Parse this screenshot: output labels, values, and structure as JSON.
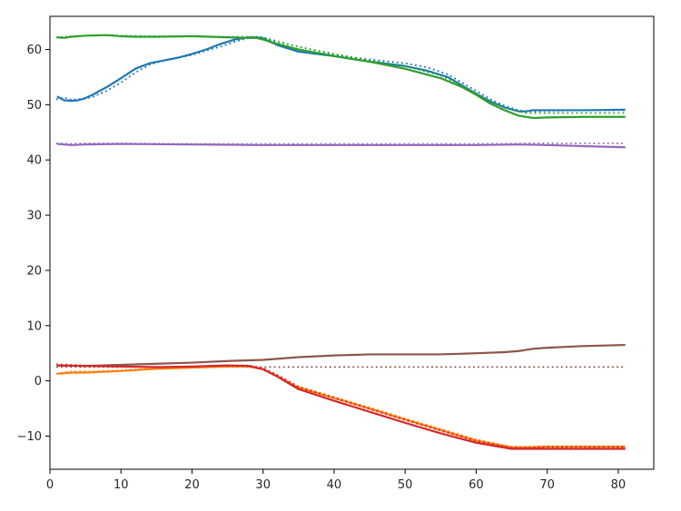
{
  "chart_data": {
    "type": "line",
    "title": "",
    "xlabel": "",
    "ylabel": "",
    "xlim": [
      0,
      85
    ],
    "ylim": [
      -16,
      66
    ],
    "xticks": [
      0,
      10,
      20,
      30,
      40,
      50,
      60,
      70,
      80
    ],
    "yticks": [
      -10,
      0,
      10,
      20,
      30,
      40,
      50,
      60
    ],
    "xtick_labels": [
      "0",
      "10",
      "20",
      "30",
      "40",
      "50",
      "60",
      "70",
      "80"
    ],
    "ytick_labels": [
      "−10",
      "0",
      "10",
      "20",
      "30",
      "40",
      "50",
      "60"
    ],
    "grid": false,
    "legend": false,
    "series": [
      {
        "color": "#1f77b4",
        "style": "dotted",
        "x": [
          1,
          2,
          3,
          4,
          5,
          6,
          8,
          10,
          12,
          14,
          16,
          18,
          20,
          22,
          24,
          26,
          28,
          29,
          30,
          32,
          35,
          40,
          45,
          50,
          53,
          56,
          58,
          60,
          62,
          64,
          66,
          67,
          68,
          70,
          75,
          81
        ],
        "y": [
          51,
          51.3,
          50.9,
          51,
          51.1,
          51.4,
          52.5,
          54,
          55.8,
          57.2,
          58,
          58.5,
          59,
          59.8,
          60.5,
          61.4,
          62.1,
          62.3,
          62.2,
          61.2,
          60,
          59,
          58.2,
          57.5,
          56.8,
          55.5,
          54,
          52.5,
          51,
          49.8,
          49,
          48.8,
          48.8,
          48.9,
          49,
          49
        ]
      },
      {
        "color": "#1f77b4",
        "style": "solid",
        "x": [
          1,
          2,
          3,
          4,
          5,
          6,
          8,
          10,
          12,
          14,
          16,
          18,
          20,
          22,
          24,
          26,
          28,
          29,
          30,
          32,
          35,
          40,
          45,
          50,
          53,
          56,
          58,
          60,
          62,
          64,
          66,
          67,
          68,
          70,
          75,
          81
        ],
        "y": [
          51.5,
          50.8,
          50.7,
          50.8,
          51.2,
          51.8,
          53.2,
          54.8,
          56.5,
          57.5,
          58,
          58.5,
          59.2,
          60,
          61,
          61.8,
          62.2,
          62.2,
          62,
          60.8,
          59.6,
          58.8,
          57.8,
          57,
          56.2,
          55,
          53.5,
          52,
          50.6,
          49.5,
          48.8,
          48.8,
          49,
          49,
          49,
          49.1
        ]
      },
      {
        "color": "#2ca02c",
        "style": "dotted",
        "x": [
          1,
          3,
          5,
          8,
          10,
          15,
          20,
          25,
          29,
          30,
          32,
          35,
          40,
          45,
          50,
          55,
          58,
          60,
          63,
          66,
          67,
          68,
          70,
          75,
          81
        ],
        "y": [
          62.2,
          62.4,
          62.5,
          62.6,
          62.5,
          62.4,
          62.4,
          62.3,
          62.3,
          62.2,
          61.5,
          60.5,
          59.2,
          58,
          57,
          55.3,
          53.5,
          52,
          50,
          48.8,
          48.5,
          48.5,
          48.5,
          48.5,
          48.5
        ]
      },
      {
        "color": "#2ca02c",
        "style": "solid",
        "x": [
          1,
          2,
          3,
          5,
          8,
          10,
          12,
          15,
          20,
          25,
          28,
          29,
          30,
          32,
          35,
          40,
          45,
          50,
          55,
          58,
          60,
          62,
          64,
          66,
          67,
          68,
          70,
          75,
          81
        ],
        "y": [
          62.2,
          62.1,
          62.3,
          62.5,
          62.6,
          62.4,
          62.3,
          62.3,
          62.4,
          62.2,
          62.1,
          62.1,
          61.8,
          61,
          60,
          58.8,
          57.8,
          56.5,
          54.8,
          53.2,
          51.8,
          50.2,
          49,
          48,
          47.8,
          47.6,
          47.7,
          47.8,
          47.8
        ]
      },
      {
        "color": "#9467bd",
        "style": "dotted",
        "x": [
          1,
          3,
          5,
          10,
          20,
          30,
          40,
          50,
          60,
          70,
          75,
          81
        ],
        "y": [
          43,
          42.9,
          43,
          43,
          42.9,
          42.9,
          42.9,
          42.9,
          42.9,
          43,
          43,
          43
        ]
      },
      {
        "color": "#9467bd",
        "style": "solid",
        "x": [
          1,
          3,
          5,
          10,
          20,
          30,
          40,
          50,
          60,
          66,
          70,
          75,
          81
        ],
        "y": [
          42.9,
          42.7,
          42.8,
          42.9,
          42.8,
          42.7,
          42.7,
          42.7,
          42.7,
          42.8,
          42.7,
          42.5,
          42.3
        ]
      },
      {
        "color": "#8c564b",
        "style": "dotted",
        "x": [
          1,
          10,
          20,
          30,
          40,
          50,
          60,
          70,
          81
        ],
        "y": [
          2.5,
          2.5,
          2.5,
          2.5,
          2.5,
          2.5,
          2.5,
          2.5,
          2.5
        ]
      },
      {
        "color": "#8c564b",
        "style": "solid",
        "x": [
          1,
          5,
          10,
          15,
          20,
          25,
          30,
          35,
          40,
          45,
          50,
          55,
          60,
          64,
          66,
          68,
          70,
          75,
          81
        ],
        "y": [
          2.8,
          2.7,
          2.9,
          3.1,
          3.3,
          3.6,
          3.8,
          4.3,
          4.6,
          4.8,
          4.8,
          4.8,
          5,
          5.2,
          5.4,
          5.8,
          6,
          6.3,
          6.5
        ]
      },
      {
        "color": "#ff7f0e",
        "style": "dotted",
        "x": [
          1,
          3,
          5,
          10,
          15,
          20,
          25,
          28,
          30,
          32,
          35,
          40,
          45,
          50,
          55,
          60,
          65,
          67,
          68,
          70,
          75,
          81
        ],
        "y": [
          1.3,
          1.7,
          1.7,
          1.9,
          2.3,
          2.5,
          2.7,
          2.7,
          2.2,
          1,
          -1,
          -2.9,
          -4.8,
          -6.8,
          -8.7,
          -10.6,
          -12,
          -12,
          -11.9,
          -11.8,
          -11.8,
          -11.8
        ]
      },
      {
        "color": "#ff7f0e",
        "style": "solid",
        "x": [
          1,
          3,
          5,
          10,
          15,
          20,
          25,
          28,
          30,
          32,
          35,
          40,
          45,
          50,
          55,
          60,
          65,
          67,
          68,
          70,
          75,
          81
        ],
        "y": [
          1.3,
          1.5,
          1.5,
          1.8,
          2.2,
          2.4,
          2.6,
          2.6,
          2.1,
          0.8,
          -1.2,
          -3.1,
          -5,
          -7,
          -8.9,
          -10.8,
          -12,
          -12,
          -12,
          -11.9,
          -11.9,
          -11.9
        ]
      },
      {
        "color": "#d62728",
        "style": "dotted",
        "x": [
          1,
          5,
          10,
          15,
          20,
          25,
          28,
          30,
          32,
          35,
          40,
          45,
          50,
          55,
          60,
          65,
          67,
          70,
          75,
          81
        ],
        "y": [
          3,
          2.8,
          2.6,
          2.5,
          2.6,
          2.8,
          2.8,
          2.3,
          1.1,
          -1.1,
          -3.1,
          -5.1,
          -7.1,
          -9,
          -10.9,
          -12.1,
          -12.1,
          -12,
          -12,
          -12
        ]
      },
      {
        "color": "#d62728",
        "style": "solid",
        "x": [
          1,
          5,
          10,
          15,
          20,
          25,
          28,
          30,
          32,
          35,
          40,
          45,
          50,
          55,
          60,
          65,
          67,
          70,
          75,
          81
        ],
        "y": [
          2.8,
          2.7,
          2.6,
          2.5,
          2.6,
          2.8,
          2.7,
          2.1,
          0.8,
          -1.5,
          -3.6,
          -5.6,
          -7.6,
          -9.5,
          -11.2,
          -12.3,
          -12.3,
          -12.3,
          -12.3,
          -12.3
        ]
      }
    ]
  }
}
